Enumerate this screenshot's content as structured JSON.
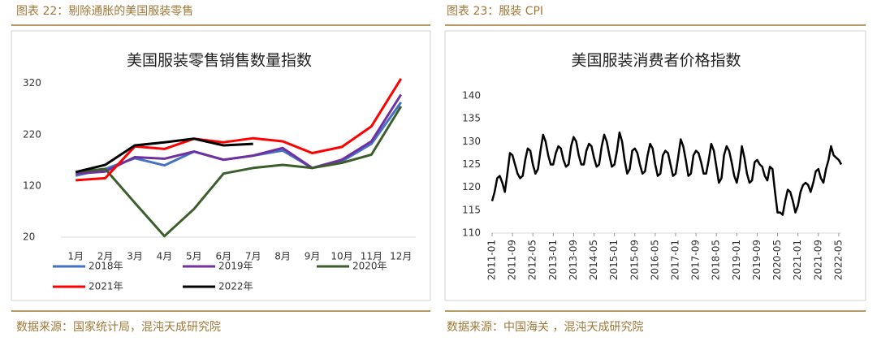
{
  "figures": [
    {
      "caption": "图表 22：剔除通胀的美国服装零售",
      "source": "数据来源：国家统计局，混沌天成研究院"
    },
    {
      "caption": "图表 23：服装 CPI",
      "source": "数据来源：中国海关 ，混沌天成研究院"
    }
  ],
  "chart_data": [
    {
      "type": "line",
      "title": "美国服装零售销售数量指数",
      "categories": [
        "1月",
        "2月",
        "3月",
        "4月",
        "5月",
        "6月",
        "7月",
        "8月",
        "9月",
        "10月",
        "11月",
        "12月"
      ],
      "ylim": [
        20,
        340
      ],
      "yticks": [
        20,
        120,
        220,
        320
      ],
      "grid": false,
      "legend": "bottom",
      "series": [
        {
          "name": "2018年",
          "color": "#4472c4",
          "values": [
            140,
            153,
            174,
            160,
            187,
            171,
            179,
            189,
            155,
            168,
            202,
            283
          ]
        },
        {
          "name": "2019年",
          "color": "#7030a0",
          "values": [
            144,
            148,
            176,
            173,
            187,
            171,
            179,
            194,
            155,
            171,
            207,
            298
          ]
        },
        {
          "name": "2020年",
          "color": "#3b5e2b",
          "values": [
            147,
            153,
            87,
            22,
            75,
            144,
            155,
            161,
            155,
            165,
            181,
            275
          ]
        },
        {
          "name": "2021年",
          "color": "#ff0000",
          "values": [
            131,
            135,
            197,
            192,
            212,
            205,
            213,
            207,
            184,
            196,
            236,
            329
          ]
        },
        {
          "name": "2022年",
          "color": "#000000",
          "values": [
            147,
            161,
            199,
            205,
            212,
            199,
            202,
            null,
            null,
            null,
            null,
            null
          ]
        }
      ]
    },
    {
      "type": "line",
      "title": "美国服装消费者价格指数",
      "categories": [
        "2011-01",
        null,
        null,
        null,
        null,
        null,
        null,
        null,
        "2011-09",
        null,
        null,
        null,
        null,
        null,
        null,
        null,
        "2012-05",
        null,
        null,
        null,
        null,
        null,
        null,
        null,
        "2013-01",
        null,
        null,
        null,
        null,
        null,
        null,
        null,
        "2013-09",
        null,
        null,
        null,
        null,
        null,
        null,
        null,
        "2014-05",
        null,
        null,
        null,
        null,
        null,
        null,
        null,
        "2015-01",
        null,
        null,
        null,
        null,
        null,
        null,
        null,
        "2015-09",
        null,
        null,
        null,
        null,
        null,
        null,
        null,
        "2016-05",
        null,
        null,
        null,
        null,
        null,
        null,
        null,
        "2017-01",
        null,
        null,
        null,
        null,
        null,
        null,
        null,
        "2017-09",
        null,
        null,
        null,
        null,
        null,
        null,
        null,
        "2018-05",
        null,
        null,
        null,
        null,
        null,
        null,
        null,
        "2019-01",
        null,
        null,
        null,
        null,
        null,
        null,
        null,
        "2019-09",
        null,
        null,
        null,
        null,
        null,
        null,
        null,
        "2020-05",
        null,
        null,
        null,
        null,
        null,
        null,
        null,
        "2021-01",
        null,
        null,
        null,
        null,
        null,
        null,
        null,
        "2021-09",
        null,
        null,
        null,
        null,
        null,
        null,
        null,
        "2022-05",
        null
      ],
      "ylim": [
        110,
        140
      ],
      "yticks": [
        110,
        115,
        120,
        125,
        130,
        135,
        140
      ],
      "grid": false,
      "series": [
        {
          "color": "#000000",
          "values": [
            117,
            119,
            122,
            122.5,
            121,
            119,
            123,
            127.5,
            127,
            125,
            123,
            122,
            122.5,
            126,
            128.5,
            128,
            125,
            123,
            124,
            128,
            131.5,
            130,
            127,
            125,
            125,
            127.5,
            129,
            128.5,
            126,
            124.5,
            125,
            129,
            131,
            130,
            127,
            125,
            125,
            128,
            129.5,
            129,
            126.5,
            124.5,
            125,
            129,
            131.5,
            130,
            127,
            124.5,
            125,
            128,
            132,
            130,
            126,
            123,
            124,
            128,
            128.5,
            127.5,
            125,
            123,
            123.5,
            127,
            129.5,
            128.5,
            125,
            122.5,
            123,
            127,
            128,
            127.5,
            125,
            122.5,
            123,
            126.5,
            130.5,
            129,
            126,
            122.5,
            123,
            127,
            128,
            127.5,
            125.5,
            123,
            123,
            126,
            129.5,
            128,
            124.5,
            121,
            122,
            127,
            129,
            128,
            125.5,
            122.5,
            121,
            124,
            129,
            126.5,
            123,
            121,
            121.5,
            125.5,
            126,
            125,
            124.5,
            122.5,
            121.5,
            124.5,
            124,
            119,
            114.5,
            114.5,
            114,
            117,
            119.5,
            119,
            117,
            114.5,
            116,
            119,
            120.5,
            121,
            120.5,
            119,
            121,
            123.5,
            124,
            122,
            121,
            124,
            126,
            129,
            127,
            126.5,
            126,
            125
          ]
        }
      ]
    }
  ]
}
